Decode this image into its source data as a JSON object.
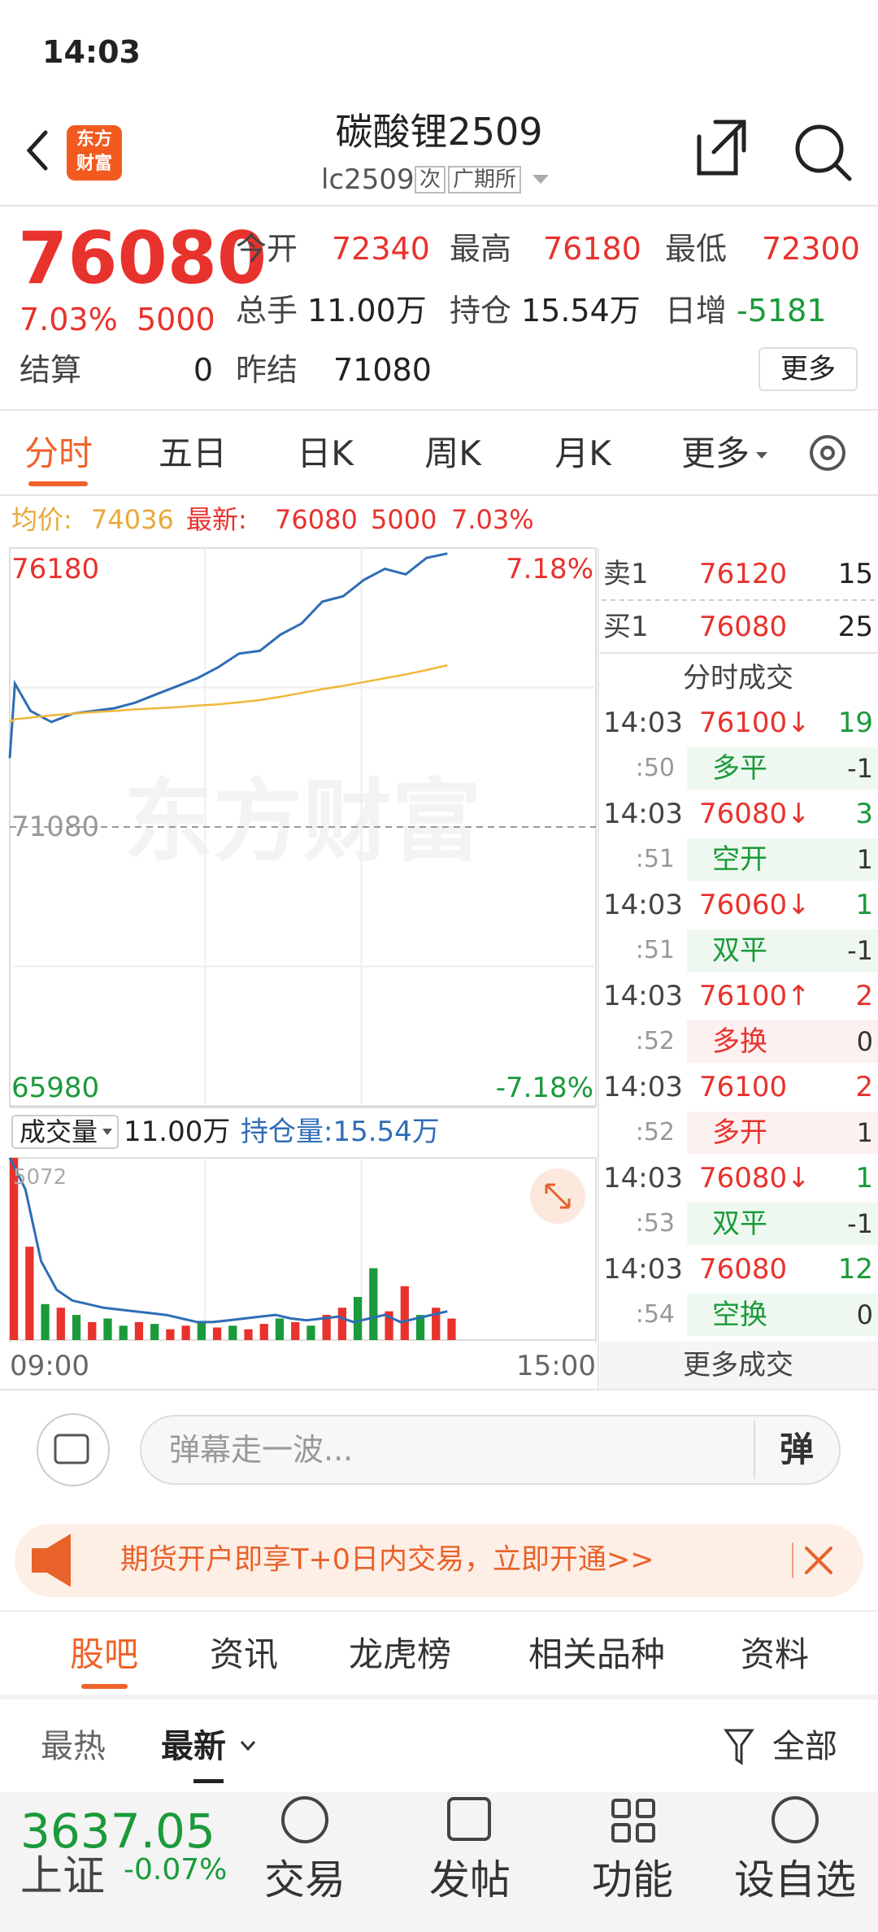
{
  "status": {
    "time": "14:03"
  },
  "header": {
    "logo": [
      "东方",
      "财富"
    ],
    "title": "碳酸锂2509",
    "code": "lc2509",
    "tags": [
      "次",
      "广期所"
    ]
  },
  "quote": {
    "price": "76080",
    "change_pct": "7.03%",
    "change": "5000",
    "fields": [
      {
        "label": "今开",
        "value": "72340",
        "color": "#e8322d"
      },
      {
        "label": "最高",
        "value": "76180",
        "color": "#e8322d"
      },
      {
        "label": "最低",
        "value": "72300",
        "color": "#e8322d"
      },
      {
        "label": "总手",
        "value": "11.00万",
        "color": "#222222"
      },
      {
        "label": "持仓",
        "value": "15.54万",
        "color": "#222222"
      },
      {
        "label": "日增",
        "value": "-5181",
        "color": "#1a9a3a"
      }
    ],
    "settle_label": "结算",
    "settle": "0",
    "prev_label": "昨结",
    "prev": "71080",
    "more": "更多"
  },
  "tabs": {
    "items": [
      "分时",
      "五日",
      "日K",
      "周K",
      "月K",
      "更多"
    ],
    "active": 0
  },
  "summary": {
    "avg_label": "均价:",
    "avg": "74036",
    "last_label": "最新:",
    "last": "76080",
    "change": "5000",
    "pct": "7.03%"
  },
  "chart_data": [
    {
      "type": "line",
      "watermark": "东方财富",
      "x": [
        0,
        2,
        8,
        16,
        24,
        32,
        40,
        48,
        56,
        64,
        72,
        80,
        88,
        96,
        104,
        112,
        120,
        128,
        136,
        144,
        152,
        160,
        168
      ],
      "xlim": [
        0,
        225
      ],
      "xgrid": [
        75,
        135
      ],
      "ylim": [
        65980,
        76180
      ],
      "yticks": [
        76180,
        71080,
        65980
      ],
      "ygrid": [
        73630,
        68530
      ],
      "y2lim": [
        -7.18,
        7.18
      ],
      "y2ticks": [
        {
          "value": 7.18,
          "label": "7.18%"
        },
        {
          "value": -7.18,
          "label": "-7.18%"
        }
      ],
      "series": [
        {
          "color": "#2f6db5",
          "values": [
            72340,
            73700,
            73200,
            73000,
            73150,
            73200,
            73250,
            73350,
            73500,
            73650,
            73800,
            74000,
            74250,
            74300,
            74600,
            74800,
            75200,
            75300,
            75600,
            75800,
            75700,
            76000,
            76080
          ]
        },
        {
          "color": "#f0b73a",
          "values": [
            73000,
            73050,
            73080,
            73120,
            73150,
            73180,
            73200,
            73230,
            73250,
            73270,
            73300,
            73320,
            73360,
            73400,
            73460,
            73530,
            73600,
            73660,
            73730,
            73800,
            73870,
            73950,
            74036
          ]
        }
      ]
    },
    {
      "type": "bar",
      "legend": {
        "selector": "成交量",
        "volume": "11.00万",
        "oi": "持仓量:15.54万"
      },
      "x": [
        0,
        6,
        12,
        18,
        24,
        30,
        36,
        42,
        48,
        54,
        60,
        66,
        72,
        78,
        84,
        90,
        96,
        102,
        108,
        114,
        120,
        126,
        132,
        138,
        144,
        150,
        156,
        162,
        168
      ],
      "xlim": [
        0,
        225
      ],
      "xgrid": [
        75,
        135
      ],
      "xticks": [
        {
          "value": 0,
          "label": "09:00"
        },
        {
          "value": 225,
          "label": "15:00"
        }
      ],
      "ylim": [
        0,
        5072
      ],
      "yticks": [
        5072
      ],
      "values": [
        5072,
        2600,
        1000,
        900,
        700,
        500,
        600,
        400,
        500,
        450,
        300,
        400,
        500,
        350,
        400,
        300,
        450,
        600,
        500,
        400,
        700,
        900,
        1200,
        2000,
        800,
        1500,
        700,
        900,
        600
      ],
      "colors": [
        "#e8322d",
        "#e8322d",
        "#1a9a3a",
        "#e8322d",
        "#1a9a3a",
        "#e8322d",
        "#1a9a3a",
        "#1a9a3a",
        "#e8322d",
        "#1a9a3a",
        "#e8322d",
        "#e8322d",
        "#1a9a3a",
        "#e8322d",
        "#1a9a3a",
        "#e8322d",
        "#e8322d",
        "#1a9a3a",
        "#e8322d",
        "#1a9a3a",
        "#e8322d",
        "#e8322d",
        "#1a9a3a",
        "#1a9a3a",
        "#e8322d",
        "#e8322d",
        "#1a9a3a",
        "#e8322d",
        "#e8322d"
      ],
      "line_color": "#2f6db5",
      "line_values": [
        5072,
        4200,
        2200,
        1400,
        1100,
        1000,
        900,
        850,
        800,
        750,
        700,
        600,
        500,
        500,
        550,
        600,
        650,
        700,
        600,
        550,
        600,
        650,
        500,
        600,
        700,
        500,
        600,
        700,
        800
      ]
    }
  ],
  "book": {
    "sell_label": "卖1",
    "sell_price": "76120",
    "sell_vol": "15",
    "buy_label": "买1",
    "buy_price": "76080",
    "buy_vol": "25",
    "title": "分时成交",
    "more": "更多成交"
  },
  "trades": [
    {
      "time": "14:03",
      "price": "76100↓",
      "vol": "19",
      "vol_color": "#1a9a3a",
      "sec": ":50",
      "kind": "多平",
      "kind_color": "#1a9a3a",
      "diff": "-1"
    },
    {
      "time": "14:03",
      "price": "76080↓",
      "vol": "3",
      "vol_color": "#1a9a3a",
      "sec": ":51",
      "kind": "空开",
      "kind_color": "#1a9a3a",
      "diff": "1"
    },
    {
      "time": "14:03",
      "price": "76060↓",
      "vol": "1",
      "vol_color": "#1a9a3a",
      "sec": ":51",
      "kind": "双平",
      "kind_color": "#1a9a3a",
      "diff": "-1"
    },
    {
      "time": "14:03",
      "price": "76100↑",
      "vol": "2",
      "vol_color": "#e8322d",
      "sec": ":52",
      "kind": "多换",
      "kind_color": "#e8322d",
      "diff": "0"
    },
    {
      "time": "14:03",
      "price": "76100",
      "vol": "2",
      "vol_color": "#e8322d",
      "sec": ":52",
      "kind": "多开",
      "kind_color": "#e8322d",
      "diff": "1"
    },
    {
      "time": "14:03",
      "price": "76080↓",
      "vol": "1",
      "vol_color": "#1a9a3a",
      "sec": ":53",
      "kind": "双平",
      "kind_color": "#1a9a3a",
      "diff": "-1"
    },
    {
      "time": "14:03",
      "price": "76080",
      "vol": "12",
      "vol_color": "#1a9a3a",
      "sec": ":54",
      "kind": "空换",
      "kind_color": "#1a9a3a",
      "diff": "0"
    }
  ],
  "comment": {
    "placeholder": "弹幕走一波...",
    "button": "弹"
  },
  "banner": {
    "text": "期货开户即享T+0日内交易，立即开通>>"
  },
  "section_tabs": {
    "items": [
      "股吧",
      "资讯",
      "龙虎榜",
      "相关品种",
      "资料"
    ],
    "active": 0
  },
  "sort": {
    "hot": "最热",
    "new": "最新",
    "filter": "全部"
  },
  "bottom": {
    "index_value": "3637.05",
    "index_name": "上证",
    "index_change": "-0.07%",
    "nav": [
      "交易",
      "发帖",
      "功能",
      "设自选"
    ]
  }
}
